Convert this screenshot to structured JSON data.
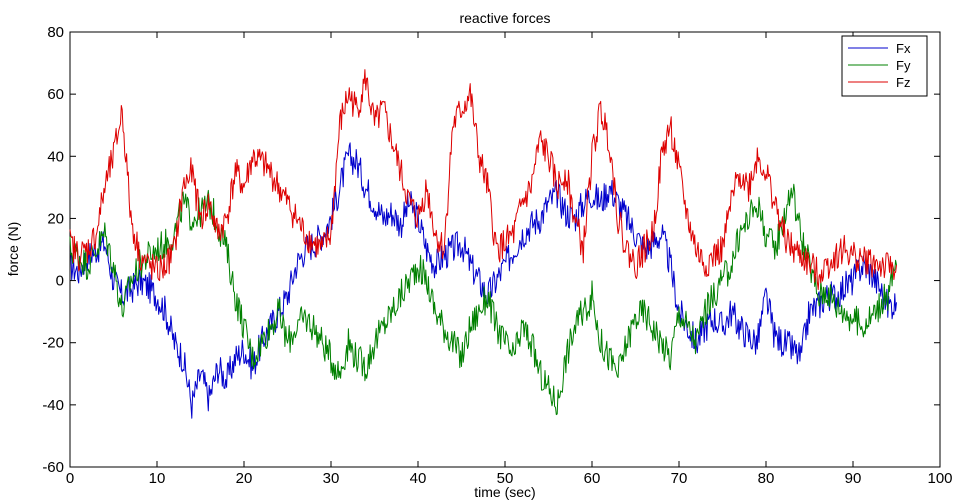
{
  "chart_data": {
    "type": "line",
    "title": "reactive forces",
    "xlabel": "time (sec)",
    "ylabel": "force (N)",
    "xlim": [
      0,
      100
    ],
    "ylim": [
      -60,
      80
    ],
    "xticks": [
      0,
      10,
      20,
      30,
      40,
      50,
      60,
      70,
      80,
      90,
      100
    ],
    "yticks": [
      -60,
      -40,
      -20,
      0,
      20,
      40,
      60,
      80
    ],
    "grid": false,
    "legend_position": "top-right",
    "series": [
      {
        "name": "Fx",
        "color": "#0000cc",
        "x": [
          0,
          1,
          2,
          3,
          4,
          5,
          6,
          7,
          8,
          9,
          10,
          11,
          12,
          13,
          14,
          15,
          16,
          17,
          18,
          19,
          20,
          21,
          22,
          23,
          24,
          25,
          26,
          27,
          28,
          29,
          30,
          31,
          32,
          33,
          34,
          35,
          36,
          37,
          38,
          39,
          40,
          41,
          42,
          43,
          44,
          45,
          46,
          47,
          48,
          49,
          50,
          51,
          52,
          53,
          54,
          55,
          56,
          57,
          58,
          59,
          60,
          61,
          62,
          63,
          64,
          65,
          66,
          67,
          68,
          69,
          70,
          71,
          72,
          73,
          74,
          75,
          76,
          77,
          78,
          79,
          80,
          81,
          82,
          83,
          84,
          85,
          86,
          87,
          88,
          89,
          90,
          91,
          92,
          93,
          94,
          95
        ],
        "y": [
          5,
          3,
          8,
          10,
          12,
          0,
          -5,
          -3,
          0,
          -2,
          -5,
          -10,
          -20,
          -25,
          -40,
          -30,
          -38,
          -28,
          -32,
          -25,
          -22,
          -28,
          -20,
          -15,
          -10,
          -5,
          5,
          10,
          12,
          15,
          20,
          30,
          40,
          38,
          30,
          25,
          20,
          22,
          18,
          25,
          20,
          10,
          5,
          8,
          10,
          12,
          5,
          0,
          -5,
          0,
          5,
          10,
          15,
          18,
          20,
          25,
          28,
          22,
          20,
          25,
          28,
          25,
          30,
          25,
          20,
          15,
          10,
          12,
          15,
          5,
          -10,
          -15,
          -20,
          -15,
          -12,
          -15,
          -10,
          -15,
          -18,
          -20,
          -5,
          -18,
          -20,
          -22,
          -25,
          -10,
          -8,
          -5,
          -5,
          -2,
          0,
          5,
          3,
          -2,
          -8,
          -7
        ]
      },
      {
        "name": "Fy",
        "color": "#008000",
        "x": [
          0,
          1,
          2,
          3,
          4,
          5,
          6,
          7,
          8,
          9,
          10,
          11,
          12,
          13,
          14,
          15,
          16,
          17,
          18,
          19,
          20,
          21,
          22,
          23,
          24,
          25,
          26,
          27,
          28,
          29,
          30,
          31,
          32,
          33,
          34,
          35,
          36,
          37,
          38,
          39,
          40,
          41,
          42,
          43,
          44,
          45,
          46,
          47,
          48,
          49,
          50,
          51,
          52,
          53,
          54,
          55,
          56,
          57,
          58,
          59,
          60,
          61,
          62,
          63,
          64,
          65,
          66,
          67,
          68,
          69,
          70,
          71,
          72,
          73,
          74,
          75,
          76,
          77,
          78,
          79,
          80,
          81,
          82,
          83,
          84,
          85,
          86,
          87,
          88,
          89,
          90,
          91,
          92,
          93,
          94,
          95
        ],
        "y": [
          10,
          8,
          5,
          10,
          15,
          5,
          -10,
          0,
          5,
          8,
          10,
          12,
          15,
          25,
          20,
          22,
          25,
          18,
          10,
          -5,
          -15,
          -25,
          -20,
          -15,
          -10,
          -20,
          -15,
          -12,
          -15,
          -20,
          -25,
          -30,
          -20,
          -25,
          -28,
          -20,
          -15,
          -10,
          -5,
          0,
          5,
          0,
          -10,
          -15,
          -20,
          -25,
          -15,
          -10,
          -5,
          -15,
          -20,
          -25,
          -15,
          -20,
          -30,
          -35,
          -40,
          -25,
          -15,
          -10,
          -5,
          -20,
          -25,
          -30,
          -20,
          -12,
          -10,
          -15,
          -20,
          -25,
          -10,
          -15,
          -20,
          -10,
          -5,
          0,
          5,
          15,
          20,
          25,
          15,
          10,
          20,
          30,
          15,
          5,
          -5,
          -3,
          -8,
          -10,
          -12,
          -15,
          -12,
          -8,
          -5,
          5
        ]
      },
      {
        "name": "Fz",
        "color": "#dd0000",
        "x": [
          0,
          1,
          2,
          3,
          4,
          5,
          6,
          7,
          8,
          9,
          10,
          11,
          12,
          13,
          14,
          15,
          16,
          17,
          18,
          19,
          20,
          21,
          22,
          23,
          24,
          25,
          26,
          27,
          28,
          29,
          30,
          31,
          32,
          33,
          34,
          35,
          36,
          37,
          38,
          39,
          40,
          41,
          42,
          43,
          44,
          45,
          46,
          47,
          48,
          49,
          50,
          51,
          52,
          53,
          54,
          55,
          56,
          57,
          58,
          59,
          60,
          61,
          62,
          63,
          64,
          65,
          66,
          67,
          68,
          69,
          70,
          71,
          72,
          73,
          74,
          75,
          76,
          77,
          78,
          79,
          80,
          81,
          82,
          83,
          84,
          85,
          86,
          87,
          88,
          89,
          90,
          91,
          92,
          93,
          94,
          95
        ],
        "y": [
          12,
          8,
          10,
          15,
          30,
          40,
          55,
          20,
          8,
          5,
          3,
          5,
          10,
          30,
          35,
          20,
          25,
          15,
          20,
          35,
          30,
          40,
          38,
          35,
          30,
          25,
          20,
          15,
          12,
          10,
          15,
          50,
          60,
          55,
          65,
          50,
          55,
          45,
          35,
          25,
          20,
          30,
          15,
          10,
          50,
          55,
          60,
          40,
          30,
          10,
          12,
          15,
          25,
          30,
          45,
          40,
          30,
          35,
          20,
          10,
          40,
          55,
          45,
          20,
          10,
          5,
          10,
          15,
          40,
          50,
          35,
          20,
          10,
          5,
          8,
          10,
          25,
          35,
          30,
          40,
          35,
          25,
          15,
          10,
          8,
          5,
          2,
          5,
          8,
          10,
          8,
          7,
          6,
          5,
          4,
          5
        ]
      }
    ]
  }
}
